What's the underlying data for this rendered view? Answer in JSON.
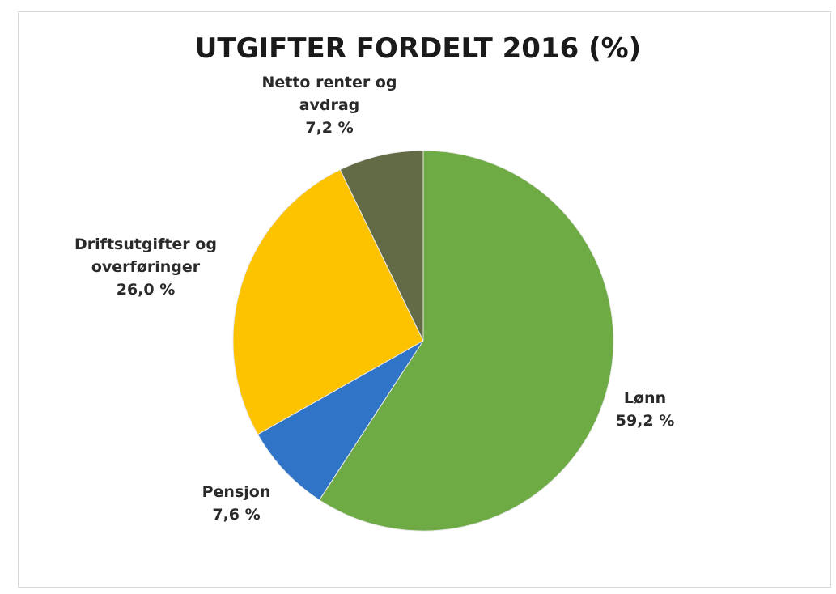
{
  "chart_data": {
    "type": "pie",
    "title": "UTGIFTER FORDELT 2016 (%)",
    "categories": [
      "Lønn",
      "Pensjon",
      "Driftsutgifter og overføringer",
      "Netto renter og avdrag"
    ],
    "values": [
      59.2,
      7.6,
      26.0,
      7.2
    ],
    "value_labels": [
      "59,2 %",
      "7,6 %",
      "26,0 %",
      "7,2 %"
    ],
    "colors": [
      "#6eab45",
      "#2f74c6",
      "#fdc300",
      "#636b46"
    ]
  }
}
